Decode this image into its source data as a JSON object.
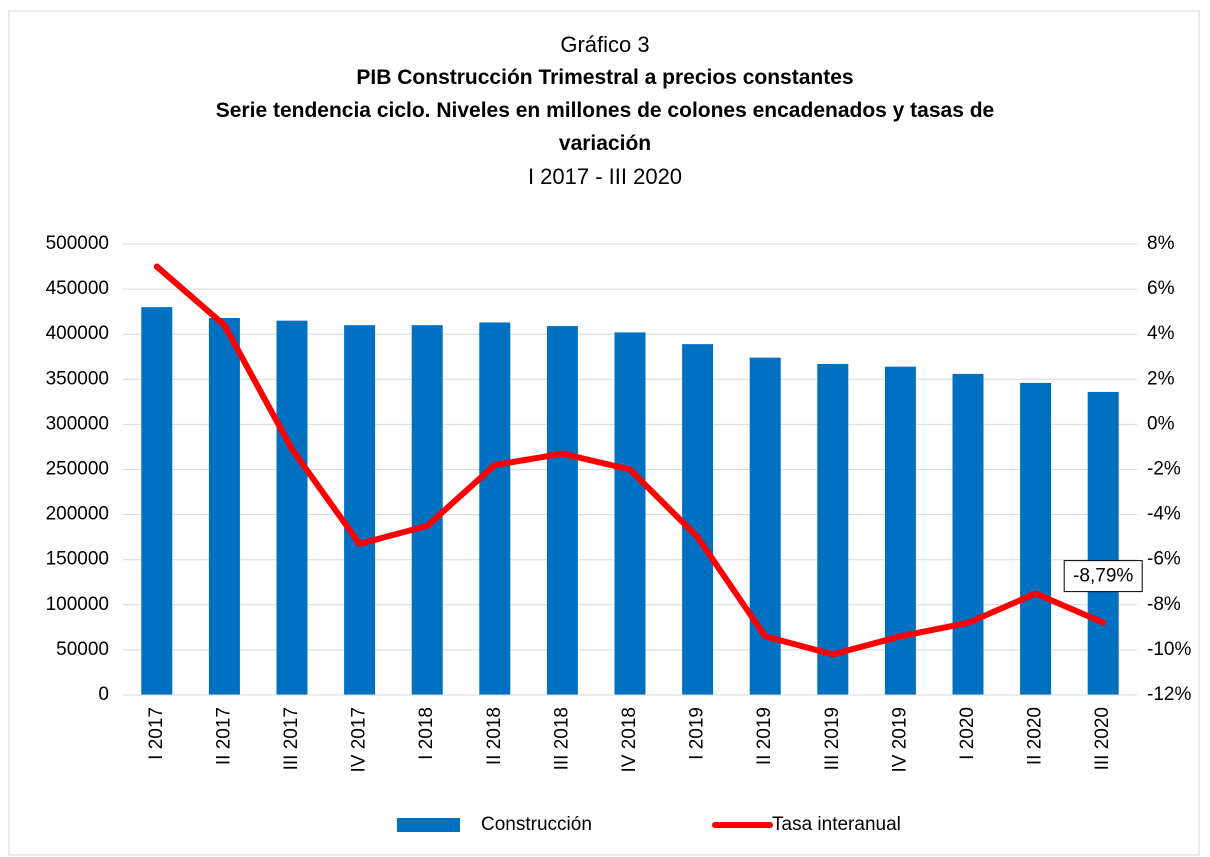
{
  "chart_data": {
    "type": "bar-line",
    "title": "Gráfico 3",
    "subtitle_lines": [
      "PIB Construcción Trimestral a precios constantes",
      "Serie tendencia ciclo. Niveles en millones de colones encadenados y tasas de variación"
    ],
    "period": "I 2017 - III 2020",
    "categories": [
      "I 2017",
      "II 2017",
      "III 2017",
      "IV 2017",
      "I 2018",
      "II 2018",
      "III 2018",
      "IV 2018",
      "I 2019",
      "II 2019",
      "III 2019",
      "IV 2019",
      "I 2020",
      "II 2020",
      "III 2020"
    ],
    "series": [
      {
        "name": "Construcción",
        "type": "bar",
        "color": "#0070c0",
        "axis": "y",
        "values": [
          430000,
          418000,
          415000,
          410000,
          410000,
          413000,
          409000,
          402000,
          389000,
          374000,
          367000,
          364000,
          356000,
          346000,
          336000
        ]
      },
      {
        "name": "Tasa interanual",
        "type": "line",
        "color": "#ff0000",
        "axis": "y2",
        "values": [
          7.0,
          4.4,
          -1.1,
          -5.3,
          -4.5,
          -1.8,
          -1.3,
          -2.0,
          -5.0,
          -9.4,
          -10.2,
          -9.4,
          -8.8,
          -7.5,
          -8.79
        ],
        "value_labels": [
          null,
          null,
          null,
          null,
          null,
          null,
          null,
          null,
          null,
          null,
          null,
          null,
          null,
          null,
          "-8,79%"
        ]
      }
    ],
    "ylim": [
      0,
      500000
    ],
    "yticks": [
      0,
      50000,
      100000,
      150000,
      200000,
      250000,
      300000,
      350000,
      400000,
      450000,
      500000
    ],
    "y2lim": [
      -12,
      8
    ],
    "y2ticks": [
      {
        "value": -12,
        "label": "-12%"
      },
      {
        "value": -10,
        "label": "-10%"
      },
      {
        "value": -8,
        "label": "-8%"
      },
      {
        "value": -6,
        "label": "-6%"
      },
      {
        "value": -4,
        "label": "-4%"
      },
      {
        "value": -2,
        "label": "-2%"
      },
      {
        "value": 0,
        "label": "0%"
      },
      {
        "value": 2,
        "label": "2%"
      },
      {
        "value": 4,
        "label": "4%"
      },
      {
        "value": 6,
        "label": "6%"
      },
      {
        "value": 8,
        "label": "8%"
      }
    ],
    "grid": true,
    "legend": "bottom"
  }
}
